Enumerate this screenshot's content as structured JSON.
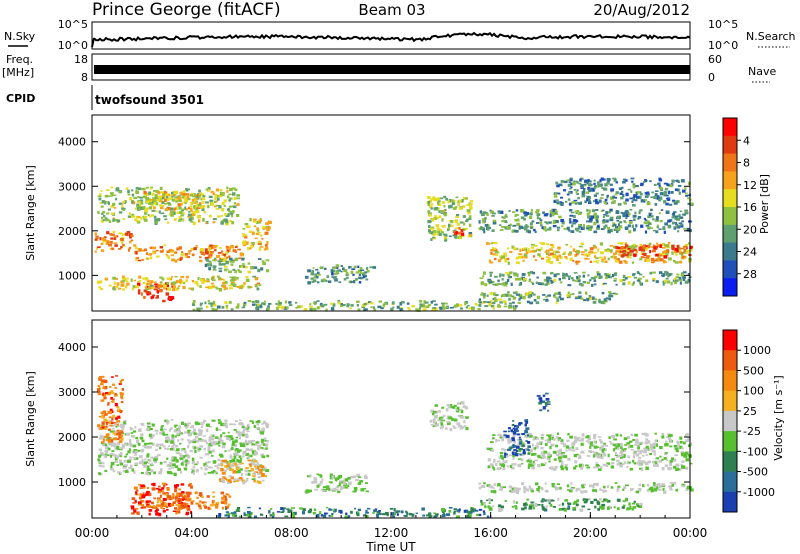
{
  "header": {
    "station": "Prince George (fitACF)",
    "beam": "Beam 03",
    "date": "20/Aug/2012"
  },
  "ts_panels": {
    "nsky_label": "N.Sky",
    "nsearch_label": "N.Search",
    "nsky_top": "10^5",
    "nsky_bottom": "10^0",
    "freq_label_1": "Freq.",
    "freq_label_2": "[MHz]",
    "freq_top": "18",
    "freq_bottom": "8",
    "nave_label": "Nave",
    "nave_top": "60",
    "nave_bottom": "0",
    "cpid_label": "CPID",
    "cpid_value": "twofsound 3501",
    "right_top": "10^5",
    "right_bottom": "10^0"
  },
  "chart_data": [
    {
      "type": "heatmap",
      "name": "power",
      "ylabel": "Slant Range [km]",
      "ylim": [
        200,
        4600
      ],
      "yticks": [
        1000,
        2000,
        3000,
        4000
      ],
      "xlim_hours": [
        0,
        24
      ],
      "colorbar": {
        "label": "Power [dB]",
        "ticks": [
          "4",
          "8",
          "12",
          "16",
          "20",
          "24",
          "28"
        ],
        "colors": [
          "#0a1ef0",
          "#1f4fb8",
          "#3a7a8c",
          "#5ea070",
          "#8fc040",
          "#e6dc20",
          "#f6a21c",
          "#f07418",
          "#e03a10",
          "#ff0000"
        ]
      },
      "bands": [
        {
          "t0": 0.1,
          "t1": 1.6,
          "r0": 1550,
          "r1": 2000,
          "level": 0.75
        },
        {
          "t0": 1.6,
          "t1": 6.0,
          "r0": 1350,
          "r1": 1700,
          "level": 0.72
        },
        {
          "t0": 6.0,
          "t1": 7.1,
          "r0": 1600,
          "r1": 2300,
          "level": 0.6
        },
        {
          "t0": 1.8,
          "t1": 3.2,
          "r0": 450,
          "r1": 850,
          "level": 0.95
        },
        {
          "t0": 0.2,
          "t1": 6.8,
          "r0": 700,
          "r1": 1000,
          "level": 0.55
        },
        {
          "t0": 0.2,
          "t1": 5.8,
          "r0": 2200,
          "r1": 3000,
          "level": 0.45
        },
        {
          "t0": 2.0,
          "t1": 4.5,
          "r0": 2500,
          "r1": 2900,
          "level": 0.6
        },
        {
          "t0": 4.5,
          "t1": 7.0,
          "r0": 1100,
          "r1": 1400,
          "level": 0.35
        },
        {
          "t0": 8.5,
          "t1": 11.3,
          "r0": 850,
          "r1": 1250,
          "level": 0.3
        },
        {
          "t0": 13.4,
          "t1": 15.2,
          "r0": 1800,
          "r1": 2800,
          "level": 0.45
        },
        {
          "t0": 14.4,
          "t1": 14.9,
          "r0": 1900,
          "r1": 2100,
          "level": 0.9
        },
        {
          "t0": 15.8,
          "t1": 24.0,
          "r0": 1300,
          "r1": 1750,
          "level": 0.6
        },
        {
          "t0": 21.0,
          "t1": 24.0,
          "r0": 1450,
          "r1": 1700,
          "level": 0.88
        },
        {
          "t0": 15.5,
          "t1": 24.0,
          "r0": 800,
          "r1": 1100,
          "level": 0.35
        },
        {
          "t0": 15.5,
          "t1": 24.0,
          "r0": 2000,
          "r1": 2500,
          "level": 0.3
        },
        {
          "t0": 18.5,
          "t1": 24.0,
          "r0": 2600,
          "r1": 3200,
          "level": 0.25
        },
        {
          "t0": 4.0,
          "t1": 17.0,
          "r0": 250,
          "r1": 450,
          "level": 0.4
        },
        {
          "t0": 15.5,
          "t1": 21.0,
          "r0": 400,
          "r1": 650,
          "level": 0.35
        }
      ]
    },
    {
      "type": "heatmap",
      "name": "velocity",
      "ylabel": "Slant Range [km]",
      "xlabel": "Time UT",
      "ylim": [
        200,
        4600
      ],
      "yticks": [
        1000,
        2000,
        3000,
        4000
      ],
      "xlim_hours": [
        0,
        24
      ],
      "xticks": [
        "00:00",
        "04:00",
        "08:00",
        "12:00",
        "16:00",
        "20:00",
        "00:00"
      ],
      "colorbar": {
        "label": "Velocity [m s⁻¹]",
        "ticks": [
          "1000",
          "500",
          "100",
          "25",
          "-25",
          "-100",
          "-500",
          "-1000"
        ],
        "colors": [
          "#1a3fb0",
          "#2a6f9a",
          "#2f8050",
          "#58c030",
          "#c8c8c8",
          "#f4b020",
          "#f58a10",
          "#ee5a10",
          "#ff0000"
        ]
      },
      "bands": [
        {
          "t0": 0.2,
          "t1": 7.0,
          "r0": 1200,
          "r1": 2400,
          "level": 0.45
        },
        {
          "t0": 0.2,
          "t1": 1.2,
          "r0": 1900,
          "r1": 3400,
          "level": 0.8
        },
        {
          "t0": 1.5,
          "t1": 4.0,
          "r0": 300,
          "r1": 1000,
          "level": 0.9
        },
        {
          "t0": 2.5,
          "t1": 5.5,
          "r0": 400,
          "r1": 800,
          "level": 0.75
        },
        {
          "t0": 5.0,
          "t1": 7.0,
          "r0": 1000,
          "r1": 1500,
          "level": 0.6
        },
        {
          "t0": 8.5,
          "t1": 11.0,
          "r0": 800,
          "r1": 1200,
          "level": 0.45
        },
        {
          "t0": 5.0,
          "t1": 16.0,
          "r0": 250,
          "r1": 450,
          "level": 0.2
        },
        {
          "t0": 13.5,
          "t1": 15.0,
          "r0": 2200,
          "r1": 2800,
          "level": 0.45
        },
        {
          "t0": 15.8,
          "t1": 24.0,
          "r0": 1300,
          "r1": 2100,
          "level": 0.45
        },
        {
          "t0": 16.5,
          "t1": 17.5,
          "r0": 1600,
          "r1": 2400,
          "level": 0.05
        },
        {
          "t0": 17.8,
          "t1": 18.3,
          "r0": 2600,
          "r1": 3000,
          "level": 0.05
        },
        {
          "t0": 15.5,
          "t1": 24.0,
          "r0": 800,
          "r1": 1000,
          "level": 0.45
        },
        {
          "t0": 15.5,
          "t1": 22.0,
          "r0": 400,
          "r1": 650,
          "level": 0.35
        }
      ]
    }
  ]
}
